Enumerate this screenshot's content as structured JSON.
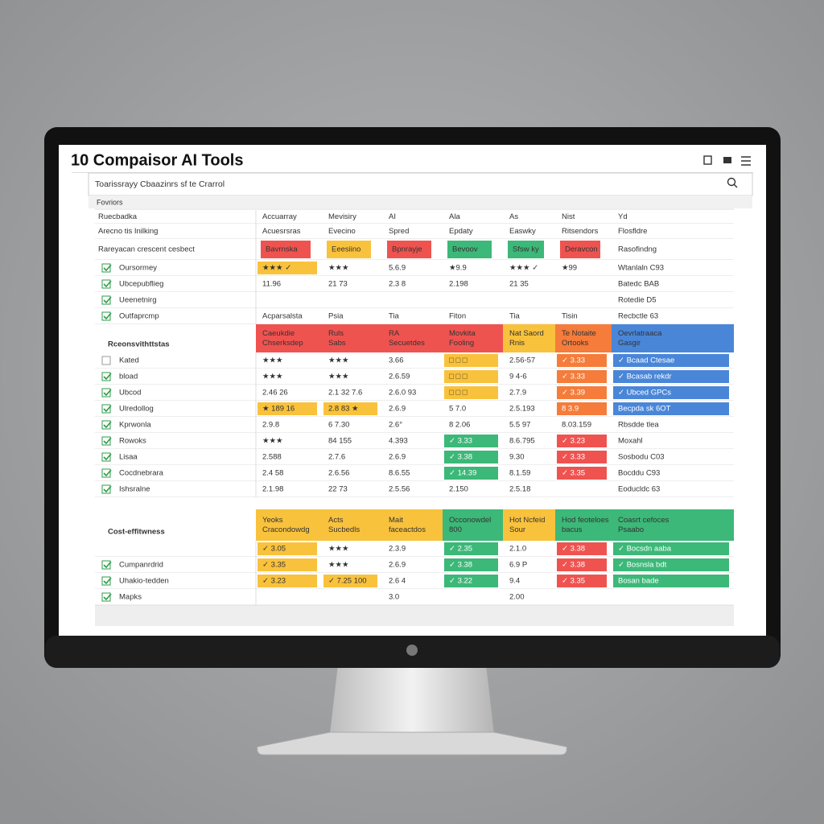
{
  "header": {
    "title": "10 Compaisor AI Tools",
    "search_placeholder": "Toarissrayy Cbaazinrs sf te Crarrol",
    "filter_label": "Fovriors"
  },
  "table": {
    "intro_rows": [
      {
        "label": "Ruecbadka",
        "check": null,
        "cells": [
          "Accuarray",
          "Mevisiry",
          "AI",
          "Ala",
          "As",
          "Nist",
          "Yd"
        ]
      },
      {
        "label": "Arecno tis Inilking",
        "check": null,
        "cells": [
          "Acuesrsras",
          "Evecino",
          "Spred",
          "Epdaty",
          "Easwky",
          "Ritsendors",
          "Flosfldre"
        ]
      },
      {
        "label": "Rareyacan crescent cesbect",
        "check": null,
        "cells": [
          {
            "text": "Bavrnska",
            "color": "#ef5350"
          },
          {
            "text": "Eeesiino",
            "color": "#f9c23c"
          },
          {
            "text": "Bpnrayje",
            "color": "#ef5350"
          },
          {
            "text": "Bevoov",
            "color": "#3cb878"
          },
          {
            "text": "Sfsw ky",
            "color": "#3cb878"
          },
          {
            "text": "Deravcon",
            "color": "#ef5350"
          },
          "Rasofindng"
        ]
      },
      {
        "label": "Oursormey",
        "check": true,
        "cells": [
          {
            "text": "★★★ ✓",
            "color": "#f9c23c"
          },
          "★★★",
          "5.6.9",
          "★9.9",
          "★★★ ✓",
          "★99",
          "Wtanlaln C93"
        ]
      },
      {
        "label": "Ubcepubflieg",
        "check": true,
        "cells": [
          "11.96",
          "21 73",
          "2.3 8",
          "2.198",
          "21 35",
          null,
          "Batedc BAB"
        ]
      },
      {
        "label": "Ueenetnirg",
        "check": true,
        "cells": [
          null,
          null,
          null,
          null,
          null,
          null,
          "Rotedie D5"
        ]
      },
      {
        "label": "Outfaprcmp",
        "check": true,
        "cells": [
          "Acparsalsta",
          "Psia",
          "Tia",
          "Fiton",
          "Tia",
          "Tisin",
          "Recbctle 63"
        ]
      }
    ],
    "sections": [
      {
        "title": "Rceonsvithttstas",
        "head": [
          {
            "lines": [
              "Caeukdie",
              "Chserksdep"
            ],
            "color": "#ef5350"
          },
          {
            "lines": [
              "Ruls",
              "Sabs"
            ],
            "color": "#ef5350"
          },
          {
            "lines": [
              "RA",
              "Secuetdes"
            ],
            "color": "#ef5350"
          },
          {
            "lines": [
              "Movkita",
              "Fooling"
            ],
            "color": "#ef5350"
          },
          {
            "lines": [
              "Nat Saord",
              "Rnis"
            ],
            "color": "#f9c23c"
          },
          {
            "lines": [
              "Te Notaite",
              "Ortooks"
            ],
            "color": "#f57c3a"
          },
          {
            "lines": [
              "Oevrlatraaca",
              "Gasgir"
            ],
            "color": "#4a86d8"
          }
        ],
        "rows": [
          {
            "label": "Kated",
            "check": false,
            "cells": [
              "★★★",
              "★★★",
              "3.66",
              {
                "text": "□ □ □",
                "color": "#f9c23c"
              },
              "2.56-57",
              {
                "text": "✓ 3.33",
                "color": "#f57c3a"
              },
              {
                "text": "✓ Bcaad Ctesae",
                "color": "#4a86d8"
              }
            ]
          },
          {
            "label": "bload",
            "check": true,
            "cells": [
              "★★★",
              "★★★",
              "2.6.59",
              {
                "text": "□ □ □",
                "color": "#f9c23c"
              },
              "9 4-6",
              {
                "text": "✓ 3.33",
                "color": "#f57c3a"
              },
              {
                "text": "✓ Bcasab rekdr",
                "color": "#4a86d8"
              }
            ]
          },
          {
            "label": "Ubcod",
            "check": true,
            "cells": [
              "2.46 26",
              "2.1 32 7.6",
              "2.6.0 93",
              {
                "text": "□ □ □",
                "color": "#f9c23c"
              },
              "2.7.9",
              {
                "text": "✓ 3.39",
                "color": "#f57c3a"
              },
              {
                "text": "✓ Ubced GPCs",
                "color": "#4a86d8"
              }
            ]
          },
          {
            "label": "Ulredollog",
            "check": true,
            "cells": [
              {
                "text": "★ 189 16",
                "color": "#f9c23c"
              },
              {
                "text": "2.8 83 ★",
                "color": "#f9c23c"
              },
              "2.6.9",
              "5 7.0",
              "2.5.193",
              {
                "text": "8 3.9",
                "color": "#f57c3a"
              },
              {
                "text": "Becpda sk 6OT",
                "color": "#4a86d8"
              }
            ]
          },
          {
            "label": "Kprwonla",
            "check": true,
            "cells": [
              "2.9.8",
              "6 7.30",
              "2.6°",
              "8 2.06",
              "5.5 97",
              "8.03.159",
              "Rbsdde tlea"
            ]
          },
          {
            "label": "Rowoks",
            "check": true,
            "cells": [
              "★★★",
              "84 155",
              "4.393",
              {
                "text": "✓ 3.33",
                "color": "#3cb878"
              },
              "8.6.795",
              {
                "text": "✓ 3.23",
                "color": "#ef5350"
              },
              "Moxahl"
            ]
          },
          {
            "label": "Lisaa",
            "check": true,
            "cells": [
              "2.588",
              "2.7.6",
              "2.6.9",
              {
                "text": "✓ 3.38",
                "color": "#3cb878"
              },
              "9.30",
              {
                "text": "✓ 3.33",
                "color": "#ef5350"
              },
              "Sosbodu C03"
            ]
          },
          {
            "label": "Cocdnebrara",
            "check": true,
            "cells": [
              "2.4 58",
              "2.6.56",
              "8.6.55",
              {
                "text": "✓ 14.39",
                "color": "#3cb878"
              },
              "8.1.59",
              {
                "text": "✓ 3.35",
                "color": "#ef5350"
              },
              "Bocddu C93"
            ]
          },
          {
            "label": "Ishsralne",
            "check": true,
            "cells": [
              "2.1.98",
              "22 73",
              "2.5.56",
              "2.150",
              "2.5.18",
              null,
              "Eoducldc 63"
            ]
          }
        ]
      },
      {
        "title": "Cost-effitwness",
        "head": [
          {
            "lines": [
              "Yeoks",
              "Cracondowdg"
            ],
            "color": "#f9c23c"
          },
          {
            "lines": [
              "Acts",
              "Sucbedls"
            ],
            "color": "#f9c23c"
          },
          {
            "lines": [
              "Mait",
              "faceactdos"
            ],
            "color": "#f9c23c"
          },
          {
            "lines": [
              "Occonowdel",
              "800"
            ],
            "color": "#3cb878"
          },
          {
            "lines": [
              "Hot Ncfeid",
              "Sour"
            ],
            "color": "#f9c23c"
          },
          {
            "lines": [
              "Hod feoteloes",
              "bacus"
            ],
            "color": "#3cb878"
          },
          {
            "lines": [
              "Coasrt cefoces",
              "Psaabo"
            ],
            "color": "#3cb878"
          }
        ],
        "rows": [
          {
            "label": null,
            "check": null,
            "cells": [
              {
                "text": "✓ 3.05",
                "color": "#f9c23c"
              },
              "★★★",
              "2.3.9",
              {
                "text": "✓ 2.35",
                "color": "#3cb878"
              },
              "2.1.0",
              {
                "text": "✓ 3.38",
                "color": "#ef5350"
              },
              {
                "text": "✓ Bocsdn aaba",
                "color": "#3cb878"
              }
            ]
          },
          {
            "label": "Cumpanrdrid",
            "check": true,
            "cells": [
              {
                "text": "✓ 3.35",
                "color": "#f9c23c"
              },
              "★★★",
              "2.6.9",
              {
                "text": "✓ 3.38",
                "color": "#3cb878"
              },
              "6.9 P",
              {
                "text": "✓ 3.38",
                "color": "#ef5350"
              },
              {
                "text": "✓ Bosnsla bdt",
                "color": "#3cb878"
              }
            ]
          },
          {
            "label": "Uhakio-tedden",
            "check": true,
            "cells": [
              {
                "text": "✓ 3.23",
                "color": "#f9c23c"
              },
              {
                "text": "✓ 7.25 100",
                "color": "#f9c23c"
              },
              "2.6 4",
              {
                "text": "✓ 3.22",
                "color": "#3cb878"
              },
              "9.4",
              {
                "text": "✓ 3.35",
                "color": "#ef5350"
              },
              {
                "text": "Bosan bade",
                "color": "#3cb878"
              }
            ]
          },
          {
            "label": "Mapks",
            "check": true,
            "cells": [
              null,
              null,
              "3.0",
              null,
              "2.00",
              null,
              null
            ]
          }
        ]
      }
    ]
  }
}
